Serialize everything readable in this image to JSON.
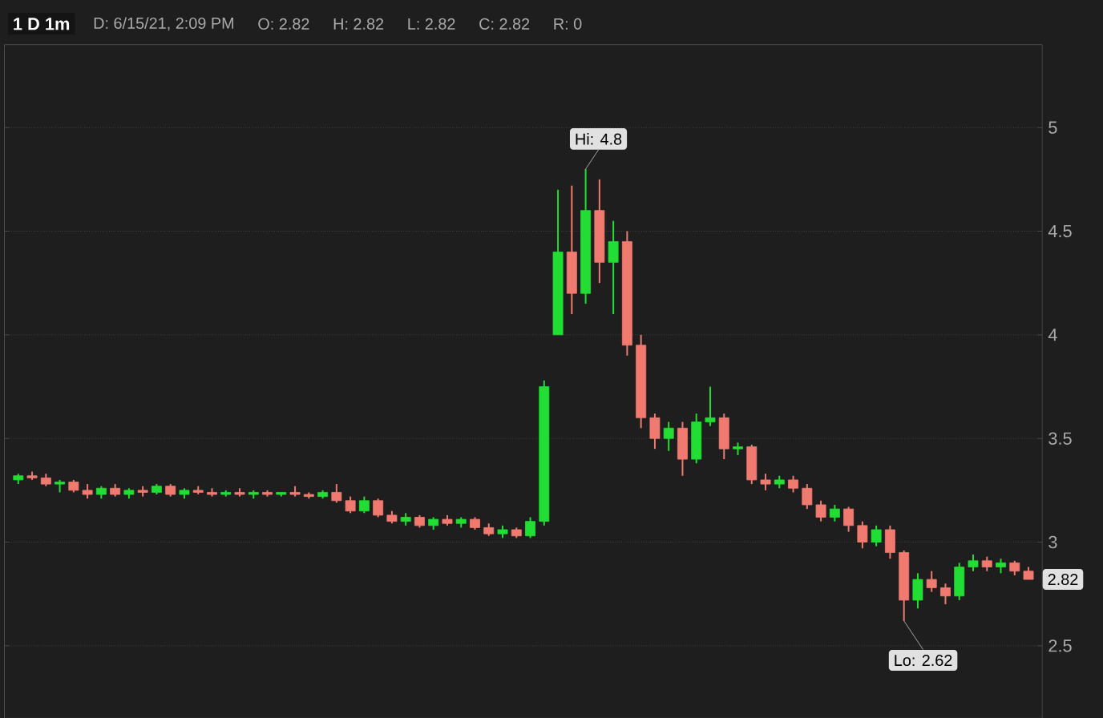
{
  "chart_data": {
    "type": "candlestick",
    "title": "1 D 1m",
    "annotations": [
      "D: 6/15/21, 2:09 PM",
      "O: 2.82",
      "H: 2.82",
      "L: 2.82",
      "C: 2.82",
      "R: 0",
      "Hi: 4.8",
      "Lo: 2.62",
      {
        "text": "2.82",
        "y": 2.82
      }
    ],
    "categories": [
      null,
      null,
      null,
      null,
      null,
      null,
      null,
      null,
      null,
      null,
      null,
      null,
      null,
      null,
      null,
      null,
      null,
      null,
      null,
      null,
      null,
      null,
      null,
      null,
      null,
      null,
      null,
      null,
      null,
      null,
      null,
      null,
      null,
      null,
      null,
      null,
      null,
      null,
      null,
      null,
      null,
      null,
      null,
      null,
      null,
      null,
      null,
      null,
      null,
      null,
      null,
      null,
      null,
      null,
      null,
      null,
      null,
      null,
      null,
      null,
      null,
      null,
      null,
      null,
      null,
      null,
      null,
      null,
      null,
      null,
      null,
      null,
      null,
      null
    ],
    "ohlc": [
      [
        3.3,
        3.33,
        3.28,
        3.32
      ],
      [
        3.32,
        3.34,
        3.3,
        3.31
      ],
      [
        3.31,
        3.33,
        3.27,
        3.28
      ],
      [
        3.28,
        3.3,
        3.24,
        3.29
      ],
      [
        3.29,
        3.3,
        3.24,
        3.25
      ],
      [
        3.25,
        3.28,
        3.21,
        3.23
      ],
      [
        3.23,
        3.27,
        3.21,
        3.26
      ],
      [
        3.26,
        3.28,
        3.22,
        3.23
      ],
      [
        3.23,
        3.26,
        3.21,
        3.25
      ],
      [
        3.25,
        3.27,
        3.22,
        3.24
      ],
      [
        3.24,
        3.28,
        3.23,
        3.27
      ],
      [
        3.27,
        3.28,
        3.22,
        3.23
      ],
      [
        3.23,
        3.26,
        3.21,
        3.25
      ],
      [
        3.25,
        3.27,
        3.23,
        3.24
      ],
      [
        3.24,
        3.26,
        3.22,
        3.23
      ],
      [
        3.23,
        3.25,
        3.22,
        3.24
      ],
      [
        3.24,
        3.26,
        3.22,
        3.23
      ],
      [
        3.23,
        3.25,
        3.21,
        3.24
      ],
      [
        3.24,
        3.25,
        3.22,
        3.23
      ],
      [
        3.23,
        3.24,
        3.22,
        3.24
      ],
      [
        3.24,
        3.27,
        3.22,
        3.23
      ],
      [
        3.23,
        3.24,
        3.21,
        3.22
      ],
      [
        3.22,
        3.25,
        3.21,
        3.24
      ],
      [
        3.24,
        3.28,
        3.19,
        3.2
      ],
      [
        3.2,
        3.22,
        3.14,
        3.15
      ],
      [
        3.15,
        3.22,
        3.14,
        3.2
      ],
      [
        3.2,
        3.21,
        3.12,
        3.13
      ],
      [
        3.13,
        3.15,
        3.09,
        3.1
      ],
      [
        3.1,
        3.14,
        3.08,
        3.12
      ],
      [
        3.12,
        3.13,
        3.07,
        3.08
      ],
      [
        3.08,
        3.12,
        3.06,
        3.11
      ],
      [
        3.11,
        3.13,
        3.08,
        3.09
      ],
      [
        3.09,
        3.12,
        3.07,
        3.11
      ],
      [
        3.11,
        3.12,
        3.06,
        3.07
      ],
      [
        3.07,
        3.09,
        3.03,
        3.04
      ],
      [
        3.04,
        3.08,
        3.02,
        3.06
      ],
      [
        3.06,
        3.07,
        3.02,
        3.03
      ],
      [
        3.03,
        3.12,
        3.02,
        3.1
      ],
      [
        3.1,
        3.78,
        3.08,
        3.75
      ],
      [
        4.0,
        4.7,
        4.0,
        4.4
      ],
      [
        4.4,
        4.72,
        4.1,
        4.2
      ],
      [
        4.2,
        4.8,
        4.15,
        4.6
      ],
      [
        4.6,
        4.75,
        4.25,
        4.35
      ],
      [
        4.35,
        4.55,
        4.1,
        4.45
      ],
      [
        4.45,
        4.5,
        3.9,
        3.95
      ],
      [
        3.95,
        4.0,
        3.55,
        3.6
      ],
      [
        3.6,
        3.62,
        3.45,
        3.5
      ],
      [
        3.5,
        3.58,
        3.44,
        3.55
      ],
      [
        3.55,
        3.58,
        3.32,
        3.4
      ],
      [
        3.4,
        3.62,
        3.38,
        3.58
      ],
      [
        3.58,
        3.75,
        3.56,
        3.6
      ],
      [
        3.6,
        3.62,
        3.4,
        3.45
      ],
      [
        3.45,
        3.48,
        3.42,
        3.46
      ],
      [
        3.46,
        3.47,
        3.28,
        3.3
      ],
      [
        3.3,
        3.33,
        3.25,
        3.28
      ],
      [
        3.28,
        3.32,
        3.26,
        3.3
      ],
      [
        3.3,
        3.32,
        3.24,
        3.26
      ],
      [
        3.26,
        3.28,
        3.16,
        3.18
      ],
      [
        3.18,
        3.2,
        3.1,
        3.12
      ],
      [
        3.12,
        3.18,
        3.1,
        3.16
      ],
      [
        3.16,
        3.17,
        3.05,
        3.08
      ],
      [
        3.08,
        3.1,
        2.97,
        3.0
      ],
      [
        3.0,
        3.08,
        2.98,
        3.06
      ],
      [
        3.06,
        3.08,
        2.92,
        2.95
      ],
      [
        2.95,
        2.96,
        2.62,
        2.72
      ],
      [
        2.72,
        2.85,
        2.68,
        2.82
      ],
      [
        2.82,
        2.86,
        2.76,
        2.78
      ],
      [
        2.78,
        2.8,
        2.7,
        2.74
      ],
      [
        2.74,
        2.9,
        2.72,
        2.88
      ],
      [
        2.88,
        2.94,
        2.86,
        2.91
      ],
      [
        2.91,
        2.93,
        2.86,
        2.88
      ],
      [
        2.88,
        2.92,
        2.85,
        2.9
      ],
      [
        2.9,
        2.91,
        2.84,
        2.86
      ],
      [
        2.86,
        2.88,
        2.82,
        2.82
      ]
    ],
    "colors": [
      "#22dd33",
      "#f07a70",
      "#f07a70",
      "#22dd33",
      "#f07a70",
      "#f07a70",
      "#22dd33",
      "#f07a70",
      "#22dd33",
      "#f07a70",
      "#22dd33",
      "#f07a70",
      "#22dd33",
      "#f07a70",
      "#f07a70",
      "#22dd33",
      "#f07a70",
      "#22dd33",
      "#f07a70",
      "#22dd33",
      "#f07a70",
      "#f07a70",
      "#22dd33",
      "#f07a70",
      "#f07a70",
      "#22dd33",
      "#f07a70",
      "#f07a70",
      "#22dd33",
      "#f07a70",
      "#22dd33",
      "#f07a70",
      "#22dd33",
      "#f07a70",
      "#f07a70",
      "#22dd33",
      "#f07a70",
      "#22dd33",
      "#22dd33",
      "#22dd33",
      "#f07a70",
      "#22dd33",
      "#f07a70",
      "#22dd33",
      "#f07a70",
      "#f07a70",
      "#f07a70",
      "#22dd33",
      "#f07a70",
      "#22dd33",
      "#22dd33",
      "#f07a70",
      "#22dd33",
      "#f07a70",
      "#f07a70",
      "#22dd33",
      "#f07a70",
      "#f07a70",
      "#f07a70",
      "#22dd33",
      "#f07a70",
      "#f07a70",
      "#22dd33",
      "#f07a70",
      "#f07a70",
      "#22dd33",
      "#f07a70",
      "#f07a70",
      "#22dd33",
      "#22dd33",
      "#f07a70",
      "#22dd33",
      "#f07a70",
      "#f07a70"
    ],
    "ylim": [
      2.15,
      5.4
    ],
    "yticks": [
      2.5,
      3,
      3.5,
      4,
      4.5,
      5
    ],
    "grid": "y",
    "tick_labels": "y"
  }
}
